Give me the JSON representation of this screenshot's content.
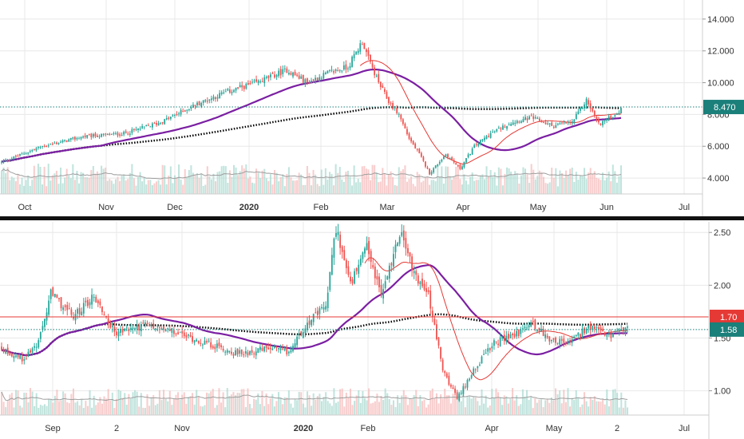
{
  "chart_data": [
    {
      "type": "candlestick",
      "ylim": [
        3.0,
        15.2
      ],
      "y_ticks": [
        "4.000",
        "6.000",
        "8.000",
        "10.000",
        "12.000",
        "14.000"
      ],
      "x_labels": [
        {
          "label": "Oct",
          "bold": false
        },
        {
          "label": "Nov",
          "bold": false
        },
        {
          "label": "Dec",
          "bold": false
        },
        {
          "label": "2020",
          "bold": true
        },
        {
          "label": "Feb",
          "bold": false
        },
        {
          "label": "Mar",
          "bold": false
        },
        {
          "label": "Apr",
          "bold": false
        },
        {
          "label": "May",
          "bold": false
        },
        {
          "label": "Jun",
          "bold": false
        },
        {
          "label": "Jul",
          "bold": false
        }
      ],
      "price_label": {
        "value": "8.470",
        "color": "#1b7f7a"
      },
      "line_levels": [
        {
          "value": 8.47,
          "color": "#1b7f7a"
        }
      ],
      "ma_colors": {
        "fast": "#e53935",
        "mid": "#7b1fa2",
        "slow": "#000000"
      },
      "anchors": [
        [
          0,
          5.0
        ],
        [
          20,
          6.0
        ],
        [
          40,
          6.6
        ],
        [
          60,
          6.8
        ],
        [
          78,
          7.5
        ],
        [
          95,
          8.6
        ],
        [
          110,
          9.4
        ],
        [
          125,
          10.0
        ],
        [
          140,
          10.8
        ],
        [
          150,
          10.0
        ],
        [
          160,
          10.6
        ],
        [
          170,
          11.0
        ],
        [
          177,
          12.6
        ],
        [
          180,
          11.5
        ],
        [
          185,
          10.0
        ],
        [
          190,
          8.8
        ],
        [
          195,
          8.0
        ],
        [
          200,
          6.5
        ],
        [
          205,
          5.5
        ],
        [
          210,
          4.3
        ],
        [
          218,
          5.5
        ],
        [
          225,
          4.6
        ],
        [
          232,
          6.0
        ],
        [
          240,
          6.8
        ],
        [
          250,
          7.5
        ],
        [
          260,
          7.8
        ],
        [
          270,
          7.3
        ],
        [
          280,
          7.5
        ],
        [
          287,
          8.9
        ],
        [
          293,
          7.4
        ],
        [
          300,
          7.9
        ],
        [
          304,
          8.3
        ]
      ]
    },
    {
      "type": "candlestick",
      "ylim": [
        0.77,
        2.6
      ],
      "y_ticks": [
        "1.00",
        "1.50",
        "2.00",
        "2.50"
      ],
      "x_labels": [
        {
          "label": "Sep",
          "bold": false
        },
        {
          "label": "2",
          "bold": false
        },
        {
          "label": "Nov",
          "bold": false
        },
        {
          "label": "2020",
          "bold": true
        },
        {
          "label": "Feb",
          "bold": false
        },
        {
          "label": "Apr",
          "bold": false
        },
        {
          "label": "May",
          "bold": false
        },
        {
          "label": "2",
          "bold": false
        },
        {
          "label": "Jul",
          "bold": false
        }
      ],
      "price_labels": [
        {
          "value": "1.70",
          "color": "#e53935"
        },
        {
          "value": "1.58",
          "color": "#1b7f7a"
        }
      ],
      "line_levels": [
        {
          "value": 1.7,
          "color": "#e53935"
        },
        {
          "value": 1.58,
          "color": "#1b7f7a"
        }
      ],
      "ma_colors": {
        "fast": "#e53935",
        "mid": "#7b1fa2",
        "slow": "#000000"
      },
      "anchors": [
        [
          0,
          1.4
        ],
        [
          10,
          1.3
        ],
        [
          18,
          1.45
        ],
        [
          24,
          1.92
        ],
        [
          35,
          1.7
        ],
        [
          45,
          1.9
        ],
        [
          55,
          1.55
        ],
        [
          70,
          1.62
        ],
        [
          85,
          1.55
        ],
        [
          100,
          1.45
        ],
        [
          115,
          1.35
        ],
        [
          130,
          1.4
        ],
        [
          140,
          1.36
        ],
        [
          148,
          1.62
        ],
        [
          158,
          1.8
        ],
        [
          163,
          2.55
        ],
        [
          170,
          2.0
        ],
        [
          178,
          2.35
        ],
        [
          185,
          1.9
        ],
        [
          195,
          2.55
        ],
        [
          200,
          2.15
        ],
        [
          208,
          1.9
        ],
        [
          215,
          1.2
        ],
        [
          222,
          0.92
        ],
        [
          230,
          1.2
        ],
        [
          240,
          1.45
        ],
        [
          252,
          1.55
        ],
        [
          258,
          1.65
        ],
        [
          266,
          1.5
        ],
        [
          276,
          1.45
        ],
        [
          286,
          1.6
        ],
        [
          296,
          1.52
        ],
        [
          305,
          1.58
        ]
      ]
    }
  ]
}
